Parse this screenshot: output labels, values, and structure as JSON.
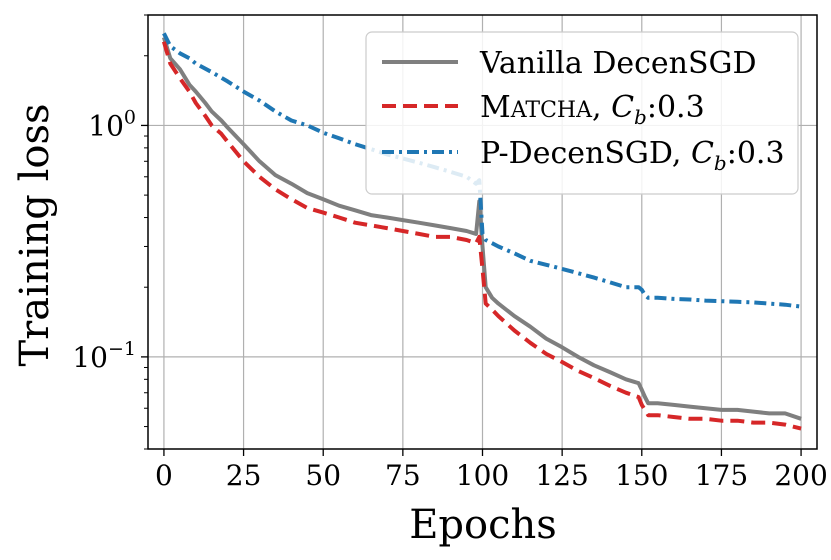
{
  "chart_data": {
    "type": "line",
    "title": "",
    "xlabel": "Epochs",
    "ylabel": "Training loss",
    "yscale": "log",
    "xlim": [
      -5,
      205
    ],
    "ylim": [
      0.04,
      3.0
    ],
    "grid": true,
    "legend_position": "top-right",
    "x_ticks": [
      {
        "value": 0,
        "label": "0"
      },
      {
        "value": 25,
        "label": "25"
      },
      {
        "value": 50,
        "label": "50"
      },
      {
        "value": 75,
        "label": "75"
      },
      {
        "value": 100,
        "label": "100"
      },
      {
        "value": 125,
        "label": "125"
      },
      {
        "value": 150,
        "label": "150"
      },
      {
        "value": 175,
        "label": "175"
      },
      {
        "value": 200,
        "label": "200"
      }
    ],
    "y_ticks": [
      {
        "value": 1.0,
        "label_base": "10",
        "label_exp": "0"
      },
      {
        "value": 0.1,
        "label_base": "10",
        "label_exp": "−1"
      }
    ],
    "series": [
      {
        "name": "Vanilla DecenSGD",
        "legend_parts": {
          "text": "Vanilla DecenSGD"
        },
        "color": "#7f7f7f",
        "dash": "solid",
        "x": [
          0,
          2,
          5,
          8,
          10,
          13,
          15,
          18,
          20,
          25,
          30,
          35,
          40,
          45,
          50,
          55,
          60,
          65,
          70,
          75,
          80,
          85,
          90,
          95,
          98,
          99,
          100,
          101,
          103,
          105,
          110,
          115,
          120,
          125,
          130,
          135,
          140,
          145,
          149,
          150,
          151,
          152,
          155,
          160,
          165,
          170,
          175,
          180,
          185,
          190,
          195,
          200
        ],
        "values": [
          2.4,
          1.95,
          1.75,
          1.5,
          1.4,
          1.25,
          1.15,
          1.05,
          0.98,
          0.83,
          0.7,
          0.61,
          0.56,
          0.51,
          0.48,
          0.45,
          0.43,
          0.41,
          0.4,
          0.39,
          0.38,
          0.37,
          0.36,
          0.35,
          0.34,
          0.47,
          0.3,
          0.2,
          0.18,
          0.17,
          0.15,
          0.135,
          0.12,
          0.11,
          0.1,
          0.092,
          0.086,
          0.08,
          0.077,
          0.072,
          0.067,
          0.063,
          0.063,
          0.062,
          0.061,
          0.06,
          0.059,
          0.059,
          0.058,
          0.057,
          0.057,
          0.054
        ]
      },
      {
        "name": "MATCHA, Cb:0.3",
        "legend_parts": {
          "matcha_first": "M",
          "matcha_rest": "ATCHA",
          "sep": ", ",
          "var": "C",
          "sub": "b",
          "rest": ":0.3"
        },
        "color": "#d62728",
        "dash": "dashed",
        "x": [
          0,
          2,
          5,
          8,
          10,
          13,
          15,
          18,
          20,
          25,
          30,
          35,
          40,
          45,
          50,
          55,
          60,
          65,
          70,
          75,
          80,
          85,
          90,
          95,
          98,
          99,
          100,
          101,
          103,
          105,
          110,
          115,
          120,
          125,
          130,
          135,
          140,
          145,
          149,
          150,
          151,
          152,
          155,
          160,
          165,
          170,
          175,
          180,
          185,
          190,
          195,
          200
        ],
        "values": [
          2.3,
          1.85,
          1.6,
          1.4,
          1.25,
          1.1,
          1.0,
          0.92,
          0.85,
          0.7,
          0.6,
          0.53,
          0.48,
          0.44,
          0.42,
          0.4,
          0.38,
          0.37,
          0.36,
          0.35,
          0.34,
          0.33,
          0.33,
          0.32,
          0.31,
          0.33,
          0.24,
          0.17,
          0.16,
          0.15,
          0.13,
          0.115,
          0.103,
          0.095,
          0.087,
          0.081,
          0.075,
          0.07,
          0.067,
          0.062,
          0.059,
          0.056,
          0.056,
          0.055,
          0.054,
          0.054,
          0.053,
          0.053,
          0.052,
          0.052,
          0.051,
          0.049
        ]
      },
      {
        "name": "P-DecenSGD, Cb:0.3",
        "legend_parts": {
          "text": "P-DecenSGD, ",
          "var": "C",
          "sub": "b",
          "rest": ":0.3"
        },
        "color": "#1f77b4",
        "dash": "dashdot",
        "x": [
          0,
          2,
          5,
          8,
          10,
          15,
          20,
          25,
          30,
          35,
          40,
          45,
          50,
          55,
          60,
          65,
          70,
          75,
          80,
          85,
          90,
          95,
          98,
          99,
          100,
          101,
          103,
          105,
          110,
          115,
          120,
          125,
          130,
          135,
          140,
          145,
          149,
          150,
          151,
          152,
          155,
          160,
          165,
          170,
          175,
          180,
          185,
          190,
          195,
          200
        ],
        "values": [
          2.5,
          2.2,
          2.05,
          1.95,
          1.85,
          1.7,
          1.55,
          1.4,
          1.28,
          1.15,
          1.05,
          1.0,
          0.93,
          0.88,
          0.83,
          0.79,
          0.75,
          0.72,
          0.69,
          0.66,
          0.63,
          0.6,
          0.56,
          0.58,
          0.34,
          0.32,
          0.31,
          0.3,
          0.28,
          0.26,
          0.25,
          0.24,
          0.23,
          0.22,
          0.21,
          0.2,
          0.2,
          0.195,
          0.185,
          0.18,
          0.18,
          0.178,
          0.177,
          0.175,
          0.174,
          0.173,
          0.172,
          0.17,
          0.168,
          0.165
        ]
      }
    ]
  }
}
